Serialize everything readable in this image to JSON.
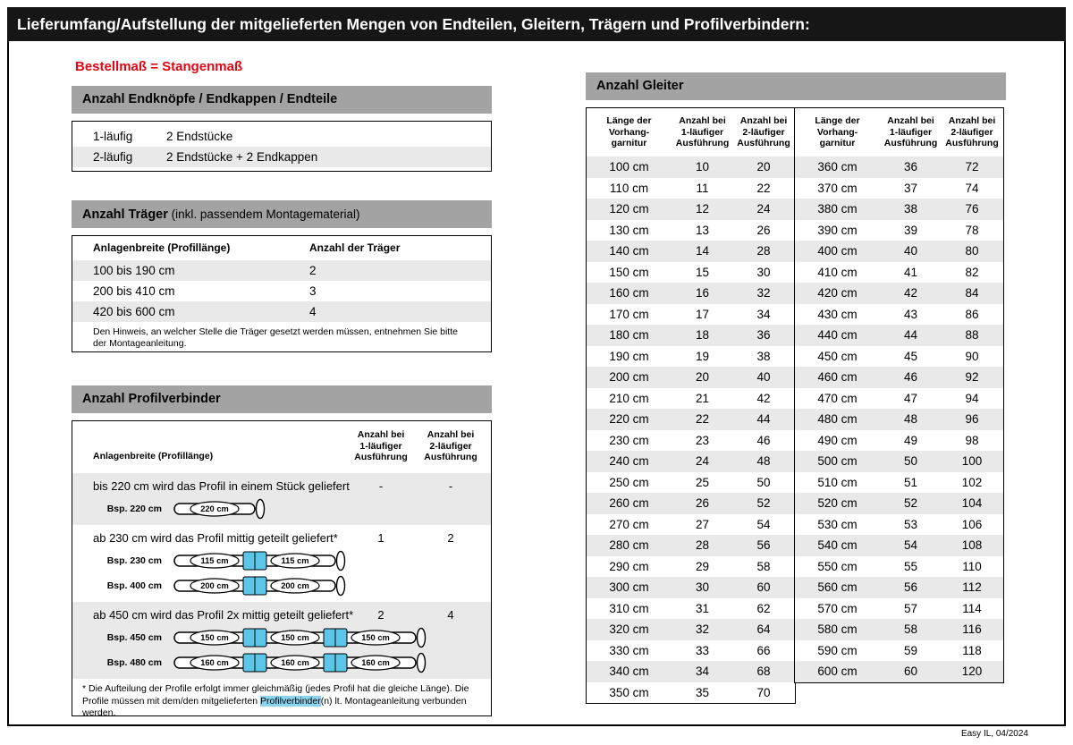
{
  "page": {
    "title": "Lieferumfang/Aufstellung der mitgelieferten Mengen von Endteilen, Gleitern, Trägern und Profilverbindern:",
    "subtitle": "Bestellmaß = Stangenmaß",
    "footer": "Easy IL, 04/2024"
  },
  "colors": {
    "titlebar_black": "#161616",
    "accent_red": "#e30613",
    "section_header_gray": "#a3a3a3",
    "row_stripe_gray": "#e9e9e9",
    "connector_cyan": "#5bc6e8",
    "highlight_cyan": "#8bd4f0"
  },
  "endteile": {
    "title": "Anzahl Endknöpfe / Endkappen / Endteile",
    "rows": [
      {
        "label": "1-läufig",
        "value": "2 Endstücke"
      },
      {
        "label": "2-läufig",
        "value": "2 Endstücke + 2 Endkappen"
      }
    ]
  },
  "traeger": {
    "title_bold": "Anzahl Träger",
    "title_rest": " (inkl. passendem Montagematerial)",
    "col1": "Anlagenbreite (Profillänge)",
    "col2": "Anzahl der Träger",
    "rows": [
      {
        "label": "100 bis 190 cm",
        "value": "2"
      },
      {
        "label": "200 bis 410 cm",
        "value": "3"
      },
      {
        "label": "420 bis 600 cm",
        "value": "4"
      }
    ],
    "note": "Den Hinweis, an welcher Stelle die Träger gesetzt werden müssen, entnehmen Sie bitte der Montageanleitung."
  },
  "profilverbinder": {
    "title": "Anzahl Profilverbinder",
    "col1": "Anlagenbreite (Profillänge)",
    "col2": "Anzahl bei\n1-läufiger\nAusführung",
    "col3": "Anzahl bei\n2-läufiger\nAusführung",
    "sections": [
      {
        "text": "bis 220 cm wird das Profil in einem Stück geliefert",
        "count1": "-",
        "count2": "-",
        "shaded": true,
        "examples": [
          {
            "label": "Bsp. 220 cm",
            "segments": [
              "220 cm"
            ]
          }
        ]
      },
      {
        "text": "ab 230 cm wird das Profil mittig geteilt geliefert*",
        "count1": "1",
        "count2": "2",
        "shaded": false,
        "examples": [
          {
            "label": "Bsp. 230 cm",
            "segments": [
              "115 cm",
              "115 cm"
            ]
          },
          {
            "label": "Bsp. 400 cm",
            "segments": [
              "200 cm",
              "200 cm"
            ]
          }
        ]
      },
      {
        "text": "ab 450 cm wird das Profil 2x mittig geteilt geliefert*",
        "count1": "2",
        "count2": "4",
        "shaded": true,
        "examples": [
          {
            "label": "Bsp. 450 cm",
            "segments": [
              "150 cm",
              "150 cm",
              "150 cm"
            ]
          },
          {
            "label": "Bsp. 480 cm",
            "segments": [
              "160 cm",
              "160 cm",
              "160 cm"
            ]
          }
        ]
      }
    ],
    "footnote": {
      "pre": "* Die Aufteilung der Profile erfolgt immer gleichmäßig (jedes Profil hat die gleiche Länge). Die Profile müssen mit dem/den mitgelieferten ",
      "highlight": "Profilverbinder",
      "post": "(n) lt. Montageanleitung verbunden werden."
    }
  },
  "gleiter": {
    "title": "Anzahl Gleiter",
    "col1": "Länge der\nVorhang-\ngarnitur",
    "col2": "Anzahl bei\n1-läufiger\nAusführung",
    "col3": "Anzahl bei\n2-läufiger\nAusführung",
    "left_rows": [
      [
        "100 cm",
        "10",
        "20"
      ],
      [
        "110 cm",
        "11",
        "22"
      ],
      [
        "120 cm",
        "12",
        "24"
      ],
      [
        "130 cm",
        "13",
        "26"
      ],
      [
        "140 cm",
        "14",
        "28"
      ],
      [
        "150 cm",
        "15",
        "30"
      ],
      [
        "160 cm",
        "16",
        "32"
      ],
      [
        "170 cm",
        "17",
        "34"
      ],
      [
        "180 cm",
        "18",
        "36"
      ],
      [
        "190 cm",
        "19",
        "38"
      ],
      [
        "200 cm",
        "20",
        "40"
      ],
      [
        "210 cm",
        "21",
        "42"
      ],
      [
        "220 cm",
        "22",
        "44"
      ],
      [
        "230 cm",
        "23",
        "46"
      ],
      [
        "240 cm",
        "24",
        "48"
      ],
      [
        "250 cm",
        "25",
        "50"
      ],
      [
        "260 cm",
        "26",
        "52"
      ],
      [
        "270 cm",
        "27",
        "54"
      ],
      [
        "280 cm",
        "28",
        "56"
      ],
      [
        "290 cm",
        "29",
        "58"
      ],
      [
        "300 cm",
        "30",
        "60"
      ],
      [
        "310 cm",
        "31",
        "62"
      ],
      [
        "320 cm",
        "32",
        "64"
      ],
      [
        "330 cm",
        "33",
        "66"
      ],
      [
        "340 cm",
        "34",
        "68"
      ],
      [
        "350 cm",
        "35",
        "70"
      ]
    ],
    "right_rows": [
      [
        "360 cm",
        "36",
        "72"
      ],
      [
        "370 cm",
        "37",
        "74"
      ],
      [
        "380 cm",
        "38",
        "76"
      ],
      [
        "390 cm",
        "39",
        "78"
      ],
      [
        "400 cm",
        "40",
        "80"
      ],
      [
        "410 cm",
        "41",
        "82"
      ],
      [
        "420 cm",
        "42",
        "84"
      ],
      [
        "430 cm",
        "43",
        "86"
      ],
      [
        "440 cm",
        "44",
        "88"
      ],
      [
        "450 cm",
        "45",
        "90"
      ],
      [
        "460 cm",
        "46",
        "92"
      ],
      [
        "470 cm",
        "47",
        "94"
      ],
      [
        "480 cm",
        "48",
        "96"
      ],
      [
        "490 cm",
        "49",
        "98"
      ],
      [
        "500 cm",
        "50",
        "100"
      ],
      [
        "510 cm",
        "51",
        "102"
      ],
      [
        "520 cm",
        "52",
        "104"
      ],
      [
        "530 cm",
        "53",
        "106"
      ],
      [
        "540 cm",
        "54",
        "108"
      ],
      [
        "550 cm",
        "55",
        "110"
      ],
      [
        "560 cm",
        "56",
        "112"
      ],
      [
        "570 cm",
        "57",
        "114"
      ],
      [
        "580 cm",
        "58",
        "116"
      ],
      [
        "590 cm",
        "59",
        "118"
      ],
      [
        "600 cm",
        "60",
        "120"
      ]
    ]
  }
}
